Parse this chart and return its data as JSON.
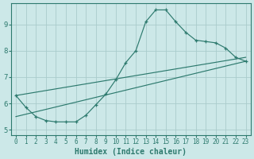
{
  "xlabel": "Humidex (Indice chaleur)",
  "bg_color": "#cce8e8",
  "grid_color": "#aacccc",
  "line_color": "#2d7a6e",
  "main_x": [
    0,
    1,
    2,
    3,
    4,
    5,
    6,
    7,
    8,
    9,
    10,
    11,
    12,
    13,
    14,
    15,
    16,
    17,
    18,
    19,
    20,
    21,
    22,
    23
  ],
  "main_y": [
    6.3,
    5.85,
    5.5,
    5.35,
    5.3,
    5.3,
    5.3,
    5.55,
    5.95,
    6.35,
    6.9,
    7.55,
    8.0,
    9.1,
    9.55,
    9.55,
    9.1,
    8.7,
    8.4,
    8.35,
    8.3,
    8.1,
    7.75,
    7.6
  ],
  "upper_line_x": [
    0,
    23
  ],
  "upper_line_y": [
    6.3,
    7.75
  ],
  "lower_line_x": [
    0,
    23
  ],
  "lower_line_y": [
    5.5,
    7.6
  ],
  "ylim": [
    4.8,
    9.8
  ],
  "xlim": [
    -0.5,
    23.5
  ],
  "yticks": [
    5,
    6,
    7,
    8,
    9
  ],
  "xticks": [
    0,
    1,
    2,
    3,
    4,
    5,
    6,
    7,
    8,
    9,
    10,
    11,
    12,
    13,
    14,
    15,
    16,
    17,
    18,
    19,
    20,
    21,
    22,
    23
  ]
}
